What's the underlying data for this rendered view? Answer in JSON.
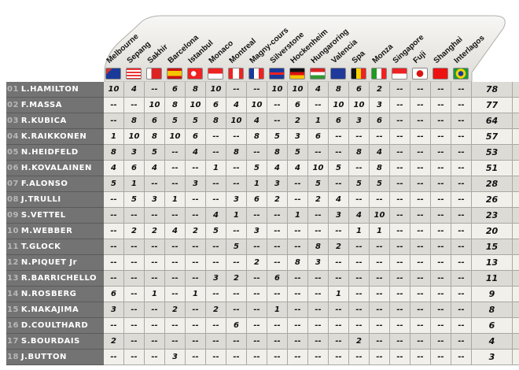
{
  "races": [
    {
      "name": "Melbourne",
      "flag": "australia-flag"
    },
    {
      "name": "Sepang",
      "flag": "malaysia-flag"
    },
    {
      "name": "Sakhir",
      "flag": "bahrain-flag"
    },
    {
      "name": "Barcelona",
      "flag": "spain-flag"
    },
    {
      "name": "Istanbul",
      "flag": "turkey-flag"
    },
    {
      "name": "Monaco",
      "flag": "monaco-flag"
    },
    {
      "name": "Montreal",
      "flag": "canada-flag"
    },
    {
      "name": "Magny-cours",
      "flag": "france-flag"
    },
    {
      "name": "Silverstone",
      "flag": "uk-flag"
    },
    {
      "name": "Hockenheim",
      "flag": "germany-flag"
    },
    {
      "name": "Hungaroring",
      "flag": "hungary-flag"
    },
    {
      "name": "Valencia",
      "flag": "eu-flag"
    },
    {
      "name": "Spa",
      "flag": "belgium-flag"
    },
    {
      "name": "Monza",
      "flag": "italy-flag"
    },
    {
      "name": "Singapore",
      "flag": "singapore-flag"
    },
    {
      "name": "Fuji",
      "flag": "japan-flag"
    },
    {
      "name": "Shanghai",
      "flag": "china-flag"
    },
    {
      "name": "Interlagos",
      "flag": "brazil-flag"
    }
  ],
  "drivers": [
    {
      "pos": "01",
      "name": "L.HAMILTON",
      "points": [
        "10",
        "4",
        "--",
        "6",
        "8",
        "10",
        "--",
        "--",
        "10",
        "10",
        "4",
        "8",
        "6",
        "2",
        "--",
        "--",
        "--",
        "--"
      ],
      "total": "78"
    },
    {
      "pos": "02",
      "name": "F.MASSA",
      "points": [
        "--",
        "--",
        "10",
        "8",
        "10",
        "6",
        "4",
        "10",
        "--",
        "6",
        "--",
        "10",
        "10",
        "3",
        "--",
        "--",
        "--",
        "--"
      ],
      "total": "77"
    },
    {
      "pos": "03",
      "name": "R.KUBICA",
      "points": [
        "--",
        "8",
        "6",
        "5",
        "5",
        "8",
        "10",
        "4",
        "--",
        "2",
        "1",
        "6",
        "3",
        "6",
        "--",
        "--",
        "--",
        "--"
      ],
      "total": "64"
    },
    {
      "pos": "04",
      "name": "K.RAIKKONEN",
      "points": [
        "1",
        "10",
        "8",
        "10",
        "6",
        "--",
        "--",
        "8",
        "5",
        "3",
        "6",
        "--",
        "--",
        "--",
        "--",
        "--",
        "--",
        "--"
      ],
      "total": "57"
    },
    {
      "pos": "05",
      "name": "N.HEIDFELD",
      "points": [
        "8",
        "3",
        "5",
        "--",
        "4",
        "--",
        "8",
        "--",
        "8",
        "5",
        "--",
        "--",
        "8",
        "4",
        "--",
        "--",
        "--",
        "--"
      ],
      "total": "53"
    },
    {
      "pos": "06",
      "name": "H.KOVALAINEN",
      "points": [
        "4",
        "6",
        "4",
        "--",
        "--",
        "1",
        "--",
        "5",
        "4",
        "4",
        "10",
        "5",
        "--",
        "8",
        "--",
        "--",
        "--",
        "--"
      ],
      "total": "51"
    },
    {
      "pos": "07",
      "name": "F.ALONSO",
      "points": [
        "5",
        "1",
        "--",
        "--",
        "3",
        "--",
        "--",
        "1",
        "3",
        "--",
        "5",
        "--",
        "5",
        "5",
        "--",
        "--",
        "--",
        "--"
      ],
      "total": "28"
    },
    {
      "pos": "08",
      "name": "J.TRULLI",
      "points": [
        "--",
        "5",
        "3",
        "1",
        "--",
        "--",
        "3",
        "6",
        "2",
        "--",
        "2",
        "4",
        "--",
        "--",
        "--",
        "--",
        "--",
        "--"
      ],
      "total": "26"
    },
    {
      "pos": "09",
      "name": "S.VETTEL",
      "points": [
        "--",
        "--",
        "--",
        "--",
        "--",
        "4",
        "1",
        "--",
        "--",
        "1",
        "--",
        "3",
        "4",
        "10",
        "--",
        "--",
        "--",
        "--"
      ],
      "total": "23"
    },
    {
      "pos": "10",
      "name": "M.WEBBER",
      "points": [
        "--",
        "2",
        "2",
        "4",
        "2",
        "5",
        "--",
        "3",
        "--",
        "--",
        "--",
        "--",
        "1",
        "1",
        "--",
        "--",
        "--",
        "--"
      ],
      "total": "20"
    },
    {
      "pos": "11",
      "name": "T.GLOCK",
      "points": [
        "--",
        "--",
        "--",
        "--",
        "--",
        "--",
        "5",
        "--",
        "--",
        "--",
        "8",
        "2",
        "--",
        "--",
        "--",
        "--",
        "--",
        "--"
      ],
      "total": "15"
    },
    {
      "pos": "12",
      "name": "N.PIQUET Jr",
      "points": [
        "--",
        "--",
        "--",
        "--",
        "--",
        "--",
        "--",
        "2",
        "--",
        "8",
        "3",
        "--",
        "--",
        "--",
        "--",
        "--",
        "--",
        "--"
      ],
      "total": "13"
    },
    {
      "pos": "13",
      "name": "R.BARRICHELLO",
      "points": [
        "--",
        "--",
        "--",
        "--",
        "--",
        "3",
        "2",
        "--",
        "6",
        "--",
        "--",
        "--",
        "--",
        "--",
        "--",
        "--",
        "--",
        "--"
      ],
      "total": "11"
    },
    {
      "pos": "14",
      "name": "N.ROSBERG",
      "points": [
        "6",
        "--",
        "1",
        "--",
        "1",
        "--",
        "--",
        "--",
        "--",
        "--",
        "--",
        "1",
        "--",
        "--",
        "--",
        "--",
        "--",
        "--"
      ],
      "total": "9"
    },
    {
      "pos": "15",
      "name": "K.NAKAJIMA",
      "points": [
        "3",
        "--",
        "--",
        "2",
        "--",
        "2",
        "--",
        "--",
        "1",
        "--",
        "--",
        "--",
        "--",
        "--",
        "--",
        "--",
        "--",
        "--"
      ],
      "total": "8"
    },
    {
      "pos": "16",
      "name": "D.COULTHARD",
      "points": [
        "--",
        "--",
        "--",
        "--",
        "--",
        "--",
        "6",
        "--",
        "--",
        "--",
        "--",
        "--",
        "--",
        "--",
        "--",
        "--",
        "--",
        "--"
      ],
      "total": "6"
    },
    {
      "pos": "17",
      "name": "S.BOURDAIS",
      "points": [
        "2",
        "--",
        "--",
        "--",
        "--",
        "--",
        "--",
        "--",
        "--",
        "--",
        "--",
        "--",
        "2",
        "--",
        "--",
        "--",
        "--",
        "--"
      ],
      "total": "4"
    },
    {
      "pos": "18",
      "name": "J.BUTTON",
      "points": [
        "--",
        "--",
        "--",
        "3",
        "--",
        "--",
        "--",
        "--",
        "--",
        "--",
        "--",
        "--",
        "--",
        "--",
        "--",
        "--",
        "--",
        "--"
      ],
      "total": "3"
    }
  ],
  "colors": {
    "name_bg": "#737373",
    "row_dark": "#dcdbd5",
    "row_light": "#f1f0eb"
  }
}
